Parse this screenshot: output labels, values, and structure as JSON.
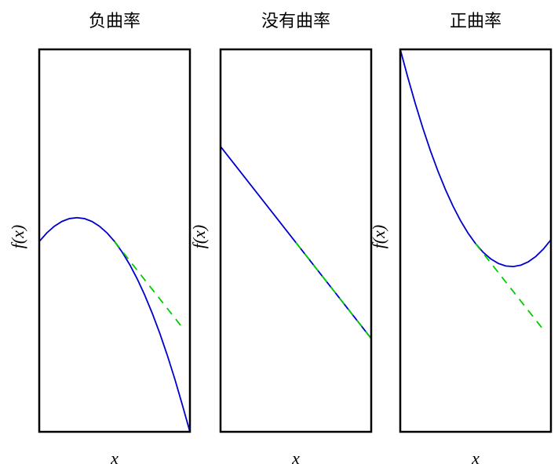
{
  "chart_data": [
    {
      "type": "line",
      "title": "负曲率",
      "xlabel": "x",
      "ylabel": "f(x)",
      "xlim": [
        0,
        1
      ],
      "ylim": [
        0,
        1
      ],
      "x": [
        0,
        0.05,
        0.1,
        0.15,
        0.2,
        0.25,
        0.3,
        0.35,
        0.4,
        0.45,
        0.5,
        0.55,
        0.6,
        0.65,
        0.7,
        0.75,
        0.8,
        0.85,
        0.9,
        0.95,
        1
      ],
      "series": [
        {
          "color": "#0000cc",
          "dashed": false,
          "values": [
            0.4975,
            0.52,
            0.5375,
            0.55,
            0.5575,
            0.56,
            0.5575,
            0.55,
            0.5375,
            0.52,
            0.4975,
            0.47,
            0.4375,
            0.4,
            0.3575,
            0.31,
            0.2575,
            0.2,
            0.1375,
            0.07,
            0
          ]
        },
        {
          "color": "#00cc00",
          "dashed": true,
          "values": [
            null,
            null,
            null,
            null,
            null,
            null,
            null,
            null,
            null,
            null,
            0.4975,
            0.4725,
            0.4475,
            0.4225,
            0.3975,
            0.3725,
            0.3475,
            0.3225,
            0.2975,
            0.2725,
            null
          ]
        }
      ]
    },
    {
      "type": "line",
      "title": "没有曲率",
      "xlabel": "x",
      "ylabel": "f(x)",
      "xlim": [
        0,
        1
      ],
      "ylim": [
        0,
        1
      ],
      "x": [
        0,
        0.05,
        0.1,
        0.15,
        0.2,
        0.25,
        0.3,
        0.35,
        0.4,
        0.45,
        0.5,
        0.55,
        0.6,
        0.65,
        0.7,
        0.75,
        0.8,
        0.85,
        0.9,
        0.95,
        1
      ],
      "series": [
        {
          "color": "#0000cc",
          "dashed": false,
          "values": [
            0.746,
            0.7209,
            0.6958,
            0.6707,
            0.6456,
            0.6205,
            0.5954,
            0.5703,
            0.5452,
            0.5201,
            0.495,
            0.4699,
            0.4448,
            0.4197,
            0.3946,
            0.3695,
            0.3444,
            0.3193,
            0.2942,
            0.2691,
            0.244
          ]
        },
        {
          "color": "#00cc00",
          "dashed": true,
          "values": [
            null,
            null,
            null,
            null,
            null,
            null,
            null,
            null,
            null,
            null,
            0.495,
            0.4699,
            0.4448,
            0.4197,
            0.3946,
            0.3695,
            0.3444,
            0.3193,
            0.2942,
            0.2691,
            0.244
          ]
        }
      ]
    },
    {
      "type": "line",
      "title": "正曲率",
      "xlabel": "x",
      "ylabel": "f(x)",
      "xlim": [
        0,
        1
      ],
      "ylim": [
        0,
        1
      ],
      "x": [
        0,
        0.05,
        0.1,
        0.15,
        0.2,
        0.25,
        0.3,
        0.35,
        0.4,
        0.45,
        0.5,
        0.55,
        0.6,
        0.65,
        0.7,
        0.75,
        0.8,
        0.85,
        0.9,
        0.95,
        1
      ],
      "series": [
        {
          "color": "#0000cc",
          "dashed": false,
          "values": [
            1,
            0.9271,
            0.858,
            0.794,
            0.7353,
            0.6817,
            0.6333,
            0.5902,
            0.5522,
            0.5195,
            0.4919,
            0.4695,
            0.4524,
            0.4404,
            0.4337,
            0.4321,
            0.4357,
            0.4446,
            0.4586,
            0.4779,
            0.5023
          ]
        },
        {
          "color": "#00cc00",
          "dashed": true,
          "values": [
            null,
            null,
            null,
            null,
            null,
            null,
            null,
            null,
            null,
            null,
            0.4919,
            0.4669,
            0.4419,
            0.4169,
            0.3919,
            0.3669,
            0.3419,
            0.3169,
            0.2919,
            0.2669,
            null
          ]
        }
      ]
    }
  ]
}
